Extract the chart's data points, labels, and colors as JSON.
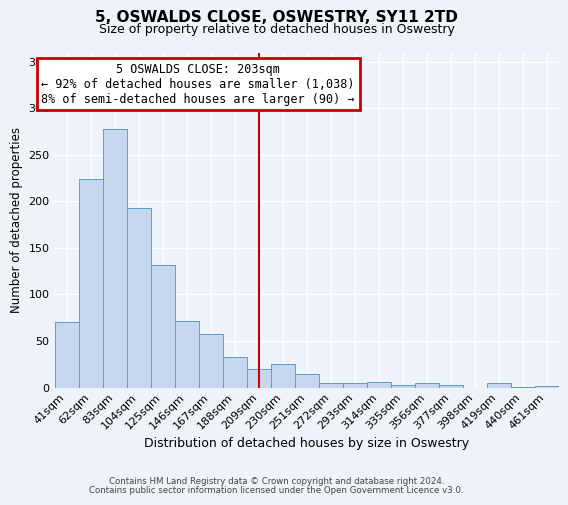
{
  "title": "5, OSWALDS CLOSE, OSWESTRY, SY11 2TD",
  "subtitle": "Size of property relative to detached houses in Oswestry",
  "xlabel": "Distribution of detached houses by size in Oswestry",
  "ylabel": "Number of detached properties",
  "bar_labels": [
    "41sqm",
    "62sqm",
    "83sqm",
    "104sqm",
    "125sqm",
    "146sqm",
    "167sqm",
    "188sqm",
    "209sqm",
    "230sqm",
    "251sqm",
    "272sqm",
    "293sqm",
    "314sqm",
    "335sqm",
    "356sqm",
    "377sqm",
    "398sqm",
    "419sqm",
    "440sqm",
    "461sqm"
  ],
  "bar_values": [
    70,
    224,
    278,
    193,
    132,
    72,
    58,
    33,
    20,
    25,
    14,
    5,
    5,
    6,
    3,
    5,
    3,
    0,
    5,
    1,
    2
  ],
  "bar_color": "#c5d8ed",
  "bar_edge_color": "#5a9fd4",
  "vline_index": 8,
  "vline_color": "#cc0000",
  "annotation_title": "5 OSWALDS CLOSE: 203sqm",
  "annotation_line1": "← 92% of detached houses are smaller (1,038)",
  "annotation_line2": "8% of semi-detached houses are larger (90) →",
  "annotation_box_facecolor": "#ffffff",
  "annotation_box_edgecolor": "#cc0000",
  "ylim": [
    0,
    360
  ],
  "yticks": [
    0,
    50,
    100,
    150,
    200,
    250,
    300,
    350
  ],
  "bg_color": "#eef2f9",
  "grid_color": "#ffffff",
  "footer_line1": "Contains HM Land Registry data © Crown copyright and database right 2024.",
  "footer_line2": "Contains public sector information licensed under the Open Government Licence v3.0."
}
